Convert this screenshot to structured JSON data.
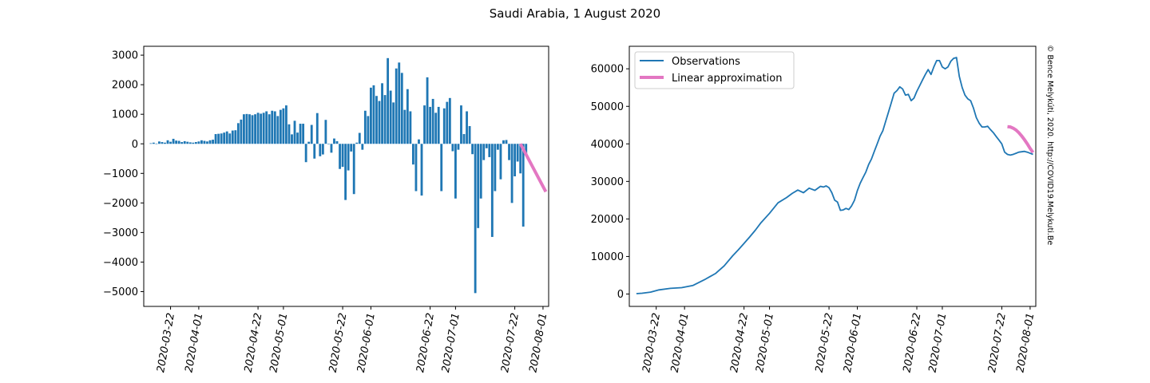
{
  "figure": {
    "title": "Saudi Arabia, 1 August 2020",
    "watermark": "© Bence Melykúti, 2020. http://COVID19.Melykuti.Be"
  },
  "colors": {
    "bar": "#1f77b4",
    "observations": "#1f77b4",
    "approximation": "#e377c2",
    "axis": "#000000",
    "watermark": "#c8c8c8"
  },
  "chart_data": [
    {
      "type": "bar",
      "title": "",
      "xlabel": "",
      "ylabel": "",
      "x_start": "2020-03-15",
      "xlim_days": [
        -2.5,
        141
      ],
      "ylim": [
        -5500,
        3300
      ],
      "yticks": [
        -5000,
        -4000,
        -3000,
        -2000,
        -1000,
        0,
        1000,
        2000,
        3000
      ],
      "ytick_labels": [
        "−5000",
        "−4000",
        "−3000",
        "−2000",
        "−1000",
        "0",
        "1000",
        "2000",
        "3000"
      ],
      "xticks_days": [
        7,
        17,
        38,
        47,
        68,
        78,
        99,
        108,
        129,
        139
      ],
      "xtick_labels": [
        "2020-03-22",
        "2020-04-01",
        "2020-04-22",
        "2020-05-01",
        "2020-05-22",
        "2020-06-01",
        "2020-06-22",
        "2020-07-01",
        "2020-07-22",
        "2020-08-01"
      ],
      "values": [
        20,
        40,
        10,
        80,
        60,
        40,
        120,
        70,
        170,
        110,
        100,
        60,
        90,
        70,
        50,
        40,
        60,
        80,
        120,
        100,
        80,
        120,
        140,
        330,
        340,
        350,
        380,
        420,
        350,
        450,
        460,
        700,
        820,
        1000,
        1010,
        1000,
        970,
        1000,
        1050,
        1020,
        1050,
        1100,
        1000,
        1120,
        1100,
        940,
        1150,
        1200,
        1300,
        660,
        320,
        780,
        380,
        680,
        680,
        -620,
        70,
        640,
        -500,
        1040,
        -420,
        -360,
        810,
        0,
        -300,
        180,
        90,
        -850,
        -780,
        -1900,
        -900,
        -260,
        -1700,
        40,
        370,
        -200,
        1120,
        940,
        1900,
        1980,
        1620,
        1450,
        2050,
        1650,
        2900,
        1800,
        1400,
        2550,
        2750,
        2400,
        1150,
        1850,
        1100,
        -700,
        -1600,
        150,
        -1750,
        1300,
        2250,
        1250,
        1520,
        1050,
        1250,
        -1600,
        1200,
        1420,
        1550,
        -250,
        -1850,
        -200,
        1300,
        330,
        1100,
        600,
        -350,
        -5050,
        -2850,
        -1850,
        -550,
        -150,
        -450,
        -3150,
        -1600,
        -200,
        -1200,
        120,
        130,
        -550,
        -2000,
        -1100,
        -600,
        -1000,
        -2800,
        -330
      ],
      "series": [
        {
          "name": "Linear approximation",
          "x_days": [
            131,
            140
          ],
          "values": [
            0,
            -1620
          ]
        }
      ]
    },
    {
      "type": "line",
      "title": "",
      "xlabel": "",
      "ylabel": "",
      "x_start": "2020-03-15",
      "xlim_days": [
        -2.5,
        141
      ],
      "ylim": [
        -3300,
        66000
      ],
      "yticks": [
        0,
        10000,
        20000,
        30000,
        40000,
        50000,
        60000
      ],
      "ytick_labels": [
        "0",
        "10000",
        "20000",
        "30000",
        "40000",
        "50000",
        "60000"
      ],
      "xticks_days": [
        7,
        17,
        38,
        47,
        68,
        78,
        99,
        108,
        129,
        139
      ],
      "xtick_labels": [
        "2020-03-22",
        "2020-04-01",
        "2020-04-22",
        "2020-05-01",
        "2020-05-22",
        "2020-06-01",
        "2020-06-22",
        "2020-07-01",
        "2020-07-22",
        "2020-08-01"
      ],
      "legend": {
        "position": "upper-left"
      },
      "series": [
        {
          "name": "Observations",
          "legend_label": "Observations",
          "x_days": [
            0,
            2,
            5,
            8,
            12,
            16,
            20,
            24,
            28,
            31,
            34,
            36,
            38,
            40,
            42,
            44,
            47,
            50,
            53,
            55,
            57,
            59,
            61,
            63,
            65,
            66,
            67,
            68,
            69,
            70,
            71,
            72,
            73,
            74,
            75,
            76,
            77,
            78,
            79,
            80,
            81,
            82,
            83,
            84,
            85,
            86,
            87,
            88,
            89,
            90,
            91,
            92,
            93,
            94,
            95,
            96,
            97,
            98,
            99,
            100,
            101,
            102,
            103,
            104,
            105,
            106,
            107,
            108,
            109,
            110,
            111,
            112,
            113,
            114,
            115,
            116,
            117,
            118,
            119,
            120,
            121,
            122,
            123,
            124,
            125,
            126,
            127,
            128,
            129,
            130,
            131,
            132,
            133,
            134,
            135,
            136,
            137,
            138,
            139,
            140
          ],
          "values": [
            100,
            200,
            500,
            1100,
            1500,
            1700,
            2300,
            3800,
            5500,
            7500,
            10200,
            11800,
            13500,
            15200,
            17000,
            19000,
            21500,
            24300,
            25700,
            26800,
            27700,
            27000,
            28200,
            27600,
            28700,
            28500,
            28800,
            28300,
            27000,
            25000,
            24500,
            22300,
            22400,
            22800,
            22500,
            23500,
            25000,
            27500,
            29500,
            31000,
            32500,
            34500,
            36000,
            38000,
            40000,
            42000,
            43500,
            46000,
            48500,
            51000,
            53500,
            54200,
            55200,
            54600,
            53000,
            53200,
            51500,
            52200,
            54000,
            55500,
            57000,
            58500,
            59800,
            58500,
            60500,
            62200,
            62200,
            60500,
            60000,
            60500,
            62000,
            62800,
            63000,
            58000,
            55000,
            53000,
            52000,
            51500,
            49500,
            47000,
            45500,
            44500,
            44500,
            44700,
            43800,
            43000,
            42000,
            41000,
            40000,
            37800,
            37200,
            37000,
            37200,
            37500,
            37800,
            37900,
            38000,
            37800,
            37500,
            37200
          ]
        },
        {
          "name": "Linear approximation",
          "legend_label": "Linear approximation",
          "x_days": [
            131,
            132,
            133,
            134,
            135,
            136,
            137,
            138,
            139,
            140
          ],
          "values": [
            44600,
            44500,
            44200,
            43700,
            43000,
            42100,
            41100,
            40000,
            38800,
            37700
          ]
        }
      ]
    }
  ]
}
